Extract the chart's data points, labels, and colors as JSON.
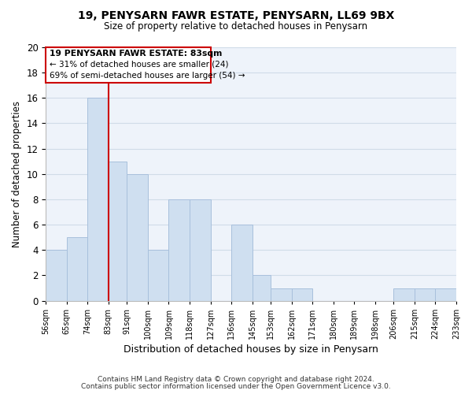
{
  "title_line1": "19, PENYSARN FAWR ESTATE, PENYSARN, LL69 9BX",
  "title_line2": "Size of property relative to detached houses in Penysarn",
  "xlabel": "Distribution of detached houses by size in Penysarn",
  "ylabel": "Number of detached properties",
  "bar_edges": [
    56,
    65,
    74,
    83,
    91,
    100,
    109,
    118,
    127,
    136,
    145,
    153,
    162,
    171,
    180,
    189,
    198,
    206,
    215,
    224,
    233
  ],
  "bar_heights": [
    4,
    5,
    16,
    11,
    10,
    4,
    8,
    8,
    0,
    6,
    2,
    1,
    1,
    0,
    0,
    0,
    0,
    1,
    1,
    1
  ],
  "bar_color": "#cfdff0",
  "bar_edge_color": "#a8c0dc",
  "property_line_x": 83,
  "ann_line1": "19 PENYSARN FAWR ESTATE: 83sqm",
  "ann_line2": "← 31% of detached houses are smaller (24)",
  "ann_line3": "69% of semi-detached houses are larger (54) →",
  "annotation_box_edgecolor": "#cc0000",
  "property_line_color": "#cc0000",
  "ylim": [
    0,
    20
  ],
  "tick_labels": [
    "56sqm",
    "65sqm",
    "74sqm",
    "83sqm",
    "91sqm",
    "100sqm",
    "109sqm",
    "118sqm",
    "127sqm",
    "136sqm",
    "145sqm",
    "153sqm",
    "162sqm",
    "171sqm",
    "180sqm",
    "189sqm",
    "198sqm",
    "206sqm",
    "215sqm",
    "224sqm",
    "233sqm"
  ],
  "footer_line1": "Contains HM Land Registry data © Crown copyright and database right 2024.",
  "footer_line2": "Contains public sector information licensed under the Open Government Licence v3.0.",
  "grid_color": "#d0dce8",
  "background_color": "#ffffff",
  "plot_bg_color": "#eef3fa"
}
